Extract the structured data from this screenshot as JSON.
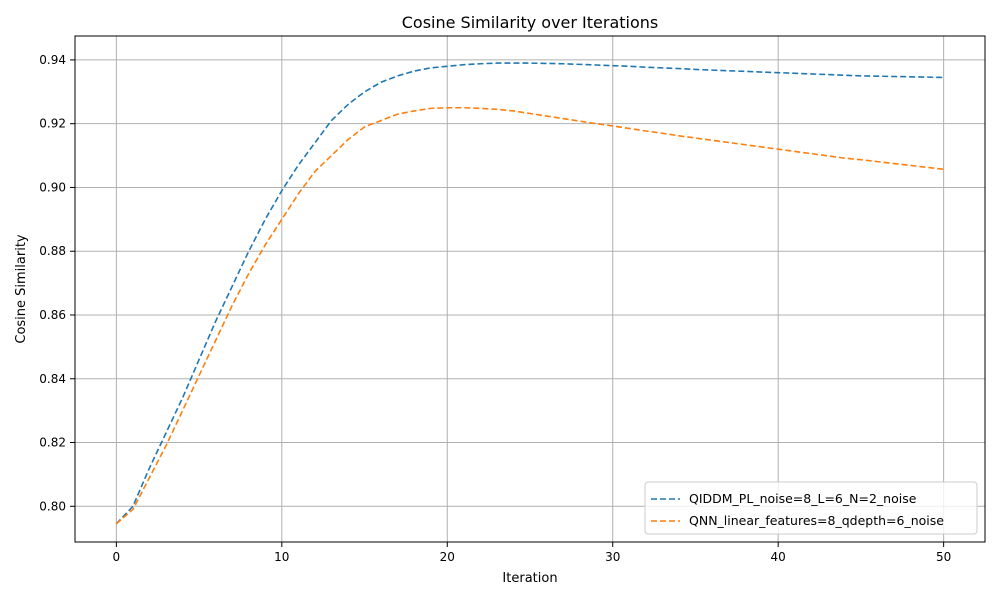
{
  "chart_data": {
    "type": "line",
    "title": "Cosine Similarity over Iterations",
    "xlabel": "Iteration",
    "ylabel": "Cosine Similarity",
    "xlim": [
      -2.5,
      52.5
    ],
    "ylim": [
      0.7888,
      0.9475
    ],
    "xticks": [
      0,
      10,
      20,
      30,
      40,
      50
    ],
    "yticks": [
      0.8,
      0.82,
      0.84,
      0.86,
      0.88,
      0.9,
      0.92,
      0.94
    ],
    "xtick_labels": [
      "0",
      "10",
      "20",
      "30",
      "40",
      "50"
    ],
    "ytick_labels": [
      "0.80",
      "0.82",
      "0.84",
      "0.86",
      "0.88",
      "0.90",
      "0.92",
      "0.94"
    ],
    "grid": true,
    "legend_position": "lower-right",
    "series": [
      {
        "name": "QIDDM_PL_noise=8_L=6_N=2_noise",
        "color": "#1f77b4",
        "dash": "dashed",
        "x": [
          0,
          1,
          2,
          3,
          4,
          5,
          6,
          7,
          8,
          9,
          10,
          11,
          12,
          13,
          14,
          15,
          16,
          17,
          18,
          19,
          20,
          21,
          22,
          23,
          24,
          25,
          26,
          27,
          28,
          29,
          30,
          31,
          32,
          33,
          34,
          35,
          36,
          37,
          38,
          39,
          40,
          41,
          42,
          43,
          44,
          45,
          46,
          47,
          48,
          49,
          50
        ],
        "values": [
          0.7945,
          0.8,
          0.812,
          0.823,
          0.834,
          0.846,
          0.858,
          0.869,
          0.88,
          0.89,
          0.899,
          0.907,
          0.914,
          0.921,
          0.926,
          0.93,
          0.933,
          0.935,
          0.9365,
          0.9375,
          0.938,
          0.9385,
          0.9388,
          0.939,
          0.939,
          0.939,
          0.9389,
          0.9388,
          0.9386,
          0.9384,
          0.9382,
          0.938,
          0.9377,
          0.9375,
          0.9373,
          0.937,
          0.9368,
          0.9366,
          0.9364,
          0.9362,
          0.936,
          0.9358,
          0.9356,
          0.9354,
          0.9352,
          0.935,
          0.9349,
          0.9348,
          0.9347,
          0.9346,
          0.9345
        ]
      },
      {
        "name": "QNN_linear_features=8_qdepth=6_noise",
        "color": "#ff7f0e",
        "dash": "dashed",
        "x": [
          0,
          1,
          2,
          3,
          4,
          5,
          6,
          7,
          8,
          9,
          10,
          11,
          12,
          13,
          14,
          15,
          16,
          17,
          18,
          19,
          20,
          21,
          22,
          23,
          24,
          25,
          26,
          27,
          28,
          29,
          30,
          31,
          32,
          33,
          34,
          35,
          36,
          37,
          38,
          39,
          40,
          41,
          42,
          43,
          44,
          45,
          46,
          47,
          48,
          49,
          50
        ],
        "values": [
          0.7945,
          0.799,
          0.809,
          0.819,
          0.83,
          0.841,
          0.852,
          0.863,
          0.873,
          0.882,
          0.89,
          0.898,
          0.905,
          0.91,
          0.915,
          0.919,
          0.921,
          0.923,
          0.924,
          0.9248,
          0.925,
          0.925,
          0.9248,
          0.9245,
          0.924,
          0.9232,
          0.9224,
          0.9216,
          0.9208,
          0.92,
          0.9193,
          0.9185,
          0.9177,
          0.917,
          0.9162,
          0.9155,
          0.9148,
          0.9141,
          0.9134,
          0.9127,
          0.912,
          0.9113,
          0.9106,
          0.9099,
          0.9092,
          0.9087,
          0.9081,
          0.9075,
          0.9069,
          0.9063,
          0.9057
        ]
      }
    ]
  }
}
